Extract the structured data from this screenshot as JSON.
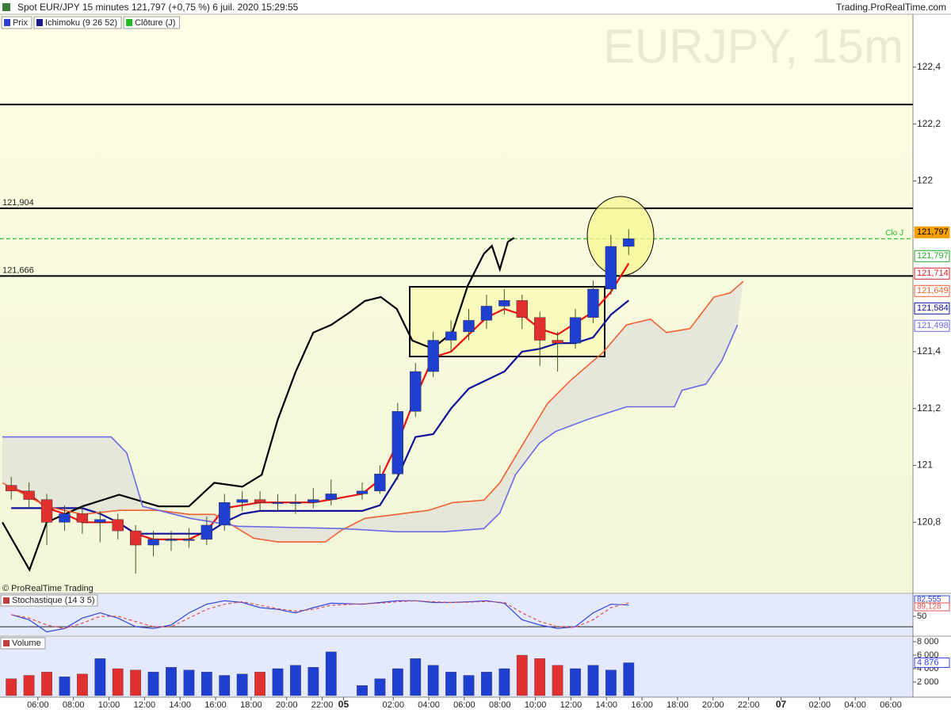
{
  "chart_data": [
    {
      "type": "candlestick",
      "title": "Spot EUR/JPY 15 minutes 121,797 (+0,75 %) 6 juil. 2020 15:29:55",
      "source": "Trading.ProRealTime.com",
      "watermark": "EURJPY, 15m",
      "copyright": "© ProRealTime Trading",
      "legend": [
        {
          "name": "Prix",
          "color": "#2f3fd0"
        },
        {
          "name": "Ichimoku (9 26 52)",
          "color": "#1a1a8c"
        },
        {
          "name": "Clôture (J)",
          "color": "#22bb22"
        }
      ],
      "candles": {
        "up_color": "#1f3fd0",
        "down_color": "#e03030",
        "x": [
          2,
          6,
          10,
          14,
          18,
          22,
          26,
          30,
          34,
          38,
          42,
          46,
          50,
          54,
          58,
          62,
          66,
          70,
          74,
          81,
          85,
          89,
          93,
          97,
          101,
          105,
          109,
          113,
          117,
          121,
          125,
          129,
          133,
          137,
          141
        ],
        "open": [
          120.93,
          120.91,
          120.88,
          120.8,
          120.83,
          120.8,
          120.81,
          120.77,
          120.72,
          120.74,
          120.74,
          120.74,
          120.79,
          120.87,
          120.88,
          120.87,
          120.87,
          120.87,
          120.88,
          120.9,
          120.91,
          120.97,
          121.19,
          121.33,
          121.44,
          121.47,
          121.51,
          121.56,
          121.58,
          121.52,
          121.44,
          121.43,
          121.52,
          121.62,
          121.77
        ],
        "high": [
          120.96,
          120.94,
          120.9,
          120.86,
          120.86,
          120.84,
          120.83,
          120.79,
          120.77,
          120.77,
          120.78,
          120.82,
          120.9,
          120.91,
          120.91,
          120.9,
          120.9,
          120.92,
          120.95,
          120.94,
          121.0,
          121.22,
          121.36,
          121.47,
          121.51,
          121.55,
          121.6,
          121.62,
          121.6,
          121.54,
          121.47,
          121.55,
          121.65,
          121.81,
          121.83
        ],
        "low": [
          120.88,
          120.85,
          120.72,
          120.77,
          120.76,
          120.73,
          120.74,
          120.62,
          120.68,
          120.7,
          120.71,
          120.72,
          120.77,
          120.84,
          120.84,
          120.84,
          120.83,
          120.85,
          120.86,
          120.88,
          120.9,
          120.95,
          121.17,
          121.31,
          121.4,
          121.44,
          121.48,
          121.53,
          121.48,
          121.35,
          121.33,
          121.41,
          121.5,
          121.6,
          121.74
        ],
        "close": [
          120.91,
          120.88,
          120.8,
          120.83,
          120.8,
          120.81,
          120.77,
          120.72,
          120.74,
          120.74,
          120.74,
          120.79,
          120.87,
          120.88,
          120.87,
          120.87,
          120.87,
          120.88,
          120.9,
          120.91,
          120.97,
          121.19,
          121.33,
          121.44,
          121.47,
          121.51,
          121.56,
          121.58,
          121.52,
          121.44,
          121.43,
          121.52,
          121.62,
          121.77,
          121.797
        ]
      },
      "lines": [
        {
          "color": "#e81010",
          "x": [
            2,
            6,
            10,
            14,
            18,
            22,
            26,
            30,
            34,
            38,
            42,
            46,
            50,
            54,
            58,
            62,
            66,
            70,
            74,
            81,
            85,
            89,
            93,
            97,
            101,
            105,
            109,
            113,
            117,
            121,
            125,
            129,
            133,
            137,
            141
          ],
          "values": [
            120.92,
            120.9,
            120.85,
            120.83,
            120.8,
            120.8,
            120.8,
            120.76,
            120.74,
            120.74,
            120.74,
            120.77,
            120.85,
            120.86,
            120.87,
            120.87,
            120.87,
            120.87,
            120.88,
            120.9,
            120.95,
            121.08,
            121.24,
            121.38,
            121.4,
            121.46,
            121.52,
            121.55,
            121.53,
            121.48,
            121.46,
            121.5,
            121.54,
            121.61,
            121.71
          ]
        },
        {
          "color": "#10109a",
          "x": [
            2,
            6,
            10,
            14,
            18,
            22,
            26,
            30,
            34,
            38,
            42,
            46,
            50,
            54,
            58,
            62,
            66,
            70,
            74,
            81,
            85,
            89,
            93,
            97,
            101,
            105,
            109,
            113,
            117,
            121,
            125,
            129,
            133,
            137,
            141
          ],
          "values": [
            120.85,
            120.85,
            120.85,
            120.85,
            120.85,
            120.83,
            120.8,
            120.76,
            120.76,
            120.76,
            120.76,
            120.76,
            120.8,
            120.83,
            120.84,
            120.84,
            120.84,
            120.84,
            120.84,
            120.84,
            120.86,
            120.96,
            121.1,
            121.11,
            121.2,
            121.27,
            121.3,
            121.33,
            121.4,
            121.41,
            121.43,
            121.43,
            121.45,
            121.53,
            121.58
          ]
        },
        {
          "color": "#000000",
          "x": [
            0,
            6.1,
            10,
            18,
            26.3,
            35.2,
            42,
            47.7,
            54,
            58.4,
            62,
            66,
            70,
            74,
            78,
            81.6,
            85.2,
            88.8,
            92.3,
            96.8,
            101.3,
            104.8,
            108.4,
            110.2,
            112,
            113.8,
            115.2
          ],
          "values": [
            120.8,
            120.633,
            120.8,
            120.856,
            120.897,
            120.856,
            120.856,
            120.939,
            120.925,
            120.967,
            121.161,
            121.328,
            121.467,
            121.494,
            121.536,
            121.578,
            121.592,
            121.55,
            121.439,
            121.411,
            121.467,
            121.633,
            121.744,
            121.772,
            121.689,
            121.786,
            121.8
          ]
        },
        {
          "color": "#f06030",
          "x": [
            0,
            10,
            18,
            26.3,
            35.2,
            42,
            47.7,
            56.6,
            62,
            72.7,
            76.3,
            81.6,
            88.8,
            95.9,
            101.3,
            108.4,
            112,
            117.3,
            122.7,
            128,
            135.2,
            140.5,
            145.9,
            149.5,
            154.8,
            160.2,
            163.8,
            166.8
          ],
          "values": [
            120.939,
            120.856,
            120.828,
            120.842,
            120.842,
            120.828,
            120.828,
            120.744,
            120.731,
            120.731,
            120.772,
            120.814,
            120.828,
            120.842,
            120.869,
            120.878,
            120.939,
            121.078,
            121.217,
            121.3,
            121.397,
            121.494,
            121.514,
            121.467,
            121.481,
            121.592,
            121.606,
            121.647
          ]
        },
        {
          "color": "#6a6ae8",
          "x": [
            0,
            24.5,
            28,
            31.6,
            42.3,
            53,
            76.3,
            88.8,
            99.5,
            108.4,
            112,
            115.5,
            120.9,
            124.5,
            131.6,
            140.5,
            151.3,
            153,
            158.4,
            162,
            165.5
          ],
          "values": [
            121.1,
            121.1,
            121.044,
            120.856,
            120.814,
            120.786,
            120.778,
            120.767,
            120.767,
            120.778,
            120.833,
            120.967,
            121.078,
            121.119,
            121.161,
            121.206,
            121.206,
            121.264,
            121.286,
            121.369,
            121.494
          ]
        }
      ],
      "cloud_color": "#d8d8d8",
      "levels": [
        {
          "value": 122.269
        },
        {
          "value": 121.904,
          "label": "121,904"
        },
        {
          "value": 121.666,
          "label": "121,666"
        }
      ],
      "close_line": {
        "value": 121.797,
        "label": "Clo J",
        "color": "#22bb22"
      },
      "price_labels": [
        {
          "value": 121.797,
          "label": "121,797",
          "color": "#f5a000",
          "filled": true
        },
        {
          "value": 121.797,
          "label": "121,797",
          "color": "#22aa22",
          "filled": false
        },
        {
          "value": 121.714,
          "label": "121,714",
          "color": "#e02020",
          "filled": false
        },
        {
          "value": 121.649,
          "label": "121,649",
          "color": "#f06030",
          "filled": false
        },
        {
          "value": 121.584,
          "label": "121,584",
          "color": "#10109a",
          "filled": false
        },
        {
          "value": 121.498,
          "label": "121,498",
          "color": "#6a6ae8",
          "filled": false
        }
      ],
      "xlim": [
        0,
        205
      ],
      "ylim": [
        120.553,
        122.586
      ],
      "yticks": [
        {
          "value": 120.8,
          "label": "120,8"
        },
        121,
        {
          "value": 121.2,
          "label": "121,2"
        },
        {
          "value": 121.4,
          "label": "121,4"
        },
        122,
        {
          "value": 122.2,
          "label": "122,2"
        },
        {
          "value": 122.4,
          "label": "122,4"
        }
      ]
    },
    {
      "type": "line",
      "title": "Stochastique (14 3 5)",
      "xlim": [
        0,
        205
      ],
      "ylim": [
        -5,
        114
      ],
      "yticks": [
        50
      ],
      "levels": [
        {
          "value": 20
        }
      ],
      "series": [
        {
          "color": "#3344dd",
          "x": [
            2,
            6,
            10,
            14,
            18,
            22,
            26,
            30,
            34,
            38,
            42,
            46,
            50,
            54,
            58,
            62,
            66,
            70,
            74,
            81,
            85,
            89,
            93,
            97,
            101,
            105,
            109,
            113,
            117,
            121,
            125,
            129,
            133,
            137,
            141
          ],
          "values": [
            55,
            40,
            5,
            15,
            45,
            60,
            45,
            20,
            15,
            25,
            60,
            85,
            95,
            90,
            75,
            70,
            60,
            75,
            88,
            85,
            90,
            95,
            95,
            90,
            90,
            92,
            95,
            88,
            40,
            25,
            15,
            20,
            60,
            85,
            82.555
          ],
          "last_label": "82,555"
        },
        {
          "color": "#e05050",
          "dashed": true,
          "x": [
            2,
            6,
            10,
            14,
            18,
            22,
            26,
            30,
            34,
            38,
            42,
            46,
            50,
            54,
            58,
            62,
            66,
            70,
            74,
            81,
            85,
            89,
            93,
            97,
            101,
            105,
            109,
            113,
            117,
            121,
            125,
            129,
            133,
            137,
            141
          ],
          "values": [
            55,
            45,
            25,
            15,
            30,
            50,
            50,
            35,
            20,
            20,
            45,
            70,
            85,
            92,
            82,
            72,
            65,
            70,
            82,
            86,
            88,
            92,
            95,
            92,
            90,
            91,
            93,
            90,
            60,
            35,
            20,
            18,
            40,
            75,
            89.128
          ],
          "last_label": "89,128"
        }
      ]
    },
    {
      "type": "bar",
      "title": "Volume",
      "xlim": [
        0,
        205
      ],
      "ylim": [
        0,
        8588
      ],
      "yticks": [
        {
          "value": 2000,
          "label": "2 000"
        },
        {
          "value": 4000,
          "label": "4 000"
        },
        {
          "value": 6000,
          "label": "6 000"
        },
        {
          "value": 8000,
          "label": "8 000"
        }
      ],
      "x": [
        2,
        6,
        10,
        14,
        18,
        22,
        26,
        30,
        34,
        38,
        42,
        46,
        50,
        54,
        58,
        62,
        66,
        70,
        74,
        81,
        85,
        89,
        93,
        97,
        101,
        105,
        109,
        113,
        117,
        121,
        125,
        129,
        133,
        137,
        141
      ],
      "values": [
        2500,
        3000,
        3500,
        2800,
        3200,
        5500,
        4000,
        3800,
        3500,
        4200,
        3800,
        3500,
        3000,
        3200,
        3500,
        4000,
        4500,
        4200,
        6500,
        1500,
        2500,
        4000,
        5500,
        4500,
        3500,
        3000,
        3500,
        4000,
        6000,
        5500,
        4500,
        4000,
        4500,
        3800,
        4876
      ],
      "last_label": "4 876",
      "xticks": [
        {
          "value": 8,
          "label": "06:00"
        },
        {
          "value": 16,
          "label": "08:00"
        },
        {
          "value": 24,
          "label": "10:00"
        },
        {
          "value": 32,
          "label": "12:00"
        },
        {
          "value": 40,
          "label": "14:00"
        },
        {
          "value": 48,
          "label": "16:00"
        },
        {
          "value": 56,
          "label": "18:00"
        },
        {
          "value": 64,
          "label": "20:00"
        },
        {
          "value": 72,
          "label": "22:00"
        },
        {
          "value": 76.8,
          "label": "05"
        },
        {
          "value": 88,
          "label": "02:00"
        },
        {
          "value": 96,
          "label": "04:00"
        },
        {
          "value": 104,
          "label": "06:00"
        },
        {
          "value": 112,
          "label": "08:00"
        },
        {
          "value": 120,
          "label": "10:00"
        },
        {
          "value": 128,
          "label": "12:00"
        },
        {
          "value": 136,
          "label": "14:00"
        },
        {
          "value": 144,
          "label": "16:00"
        },
        {
          "value": 152,
          "label": "18:00"
        },
        {
          "value": 160,
          "label": "20:00"
        },
        {
          "value": 168,
          "label": "22:00"
        },
        {
          "value": 175.3,
          "label": "07"
        },
        {
          "value": 184,
          "label": "02:00"
        },
        {
          "value": 192,
          "label": "04:00"
        },
        {
          "value": 200,
          "label": "06:00"
        }
      ]
    }
  ]
}
